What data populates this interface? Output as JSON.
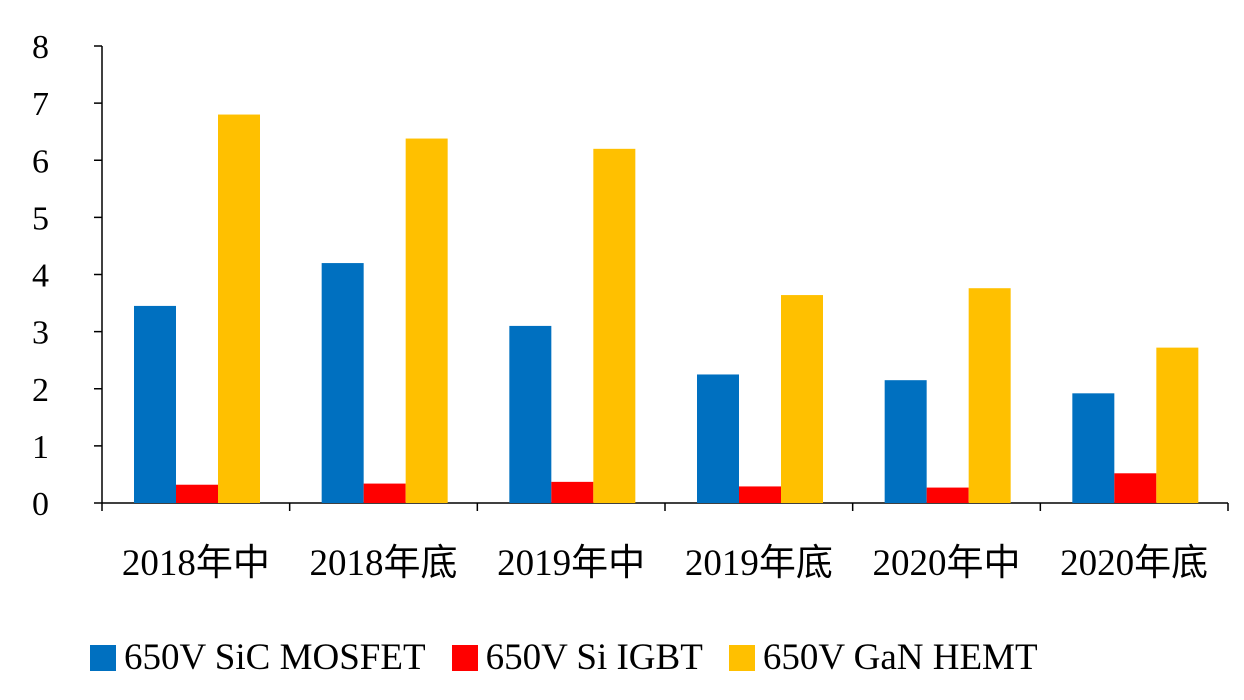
{
  "chart_data": {
    "type": "bar",
    "categories": [
      "2018年中",
      "2018年底",
      "2019年中",
      "2019年底",
      "2020年中",
      "2020年底"
    ],
    "series": [
      {
        "name": "650V SiC MOSFET",
        "color": "#0070C0",
        "values": [
          3.45,
          4.2,
          3.1,
          2.25,
          2.15,
          1.92
        ]
      },
      {
        "name": "650V Si IGBT",
        "color": "#FF0000",
        "values": [
          0.32,
          0.34,
          0.37,
          0.29,
          0.27,
          0.52
        ]
      },
      {
        "name": "650V GaN HEMT",
        "color": "#FFC000",
        "values": [
          6.8,
          6.38,
          6.2,
          3.64,
          3.76,
          2.72
        ]
      }
    ],
    "yticks": [
      "0",
      "1",
      "2",
      "3",
      "4",
      "5",
      "6",
      "7",
      "8"
    ],
    "ylim": [
      0,
      8
    ],
    "legend_position": "bottom",
    "grid": false
  },
  "legend": {
    "items": [
      {
        "label": "650V SiC MOSFET",
        "color": "#0070C0"
      },
      {
        "label": "650V Si IGBT",
        "color": "#FF0000"
      },
      {
        "label": "650V GaN HEMT",
        "color": "#FFC000"
      }
    ]
  }
}
